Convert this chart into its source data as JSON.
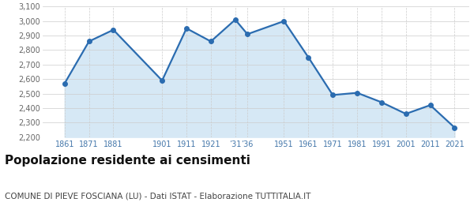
{
  "years": [
    1861,
    1871,
    1881,
    1901,
    1911,
    1921,
    1931,
    1936,
    1951,
    1961,
    1971,
    1981,
    1991,
    2001,
    2011,
    2021
  ],
  "population": [
    2570,
    2860,
    2940,
    2590,
    2950,
    2860,
    3010,
    2910,
    3000,
    2750,
    2490,
    2505,
    2440,
    2360,
    2420,
    2265
  ],
  "ylim": [
    2200,
    3100
  ],
  "yticks": [
    2200,
    2300,
    2400,
    2500,
    2600,
    2700,
    2800,
    2900,
    3000,
    3100
  ],
  "x_tick_positions": [
    1861,
    1871,
    1881,
    1901,
    1911,
    1921,
    1931,
    1936,
    1951,
    1961,
    1971,
    1981,
    1991,
    2001,
    2011,
    2021
  ],
  "x_tick_labels": [
    "1861",
    "1871",
    "1881",
    "1901",
    "1911",
    "1921",
    "’31",
    "’36",
    "1951",
    "1961",
    "1971",
    "1981",
    "1991",
    "2001",
    "2011",
    "2021"
  ],
  "xlim_left": 1852,
  "xlim_right": 2027,
  "line_color": "#2B6CB0",
  "fill_color": "#D6E8F5",
  "marker_size": 4,
  "line_width": 1.6,
  "title": "Popolazione residente ai censimenti",
  "subtitle": "COMUNE DI PIEVE FOSCIANA (LU) - Dati ISTAT - Elaborazione TUTTITALIA.IT",
  "title_fontsize": 11,
  "subtitle_fontsize": 7.5,
  "bg_color": "#ffffff",
  "grid_color": "#cccccc",
  "tick_label_color": "#4477aa",
  "ytick_label_color": "#666666",
  "ytick_fontsize": 7,
  "xtick_fontsize": 7
}
